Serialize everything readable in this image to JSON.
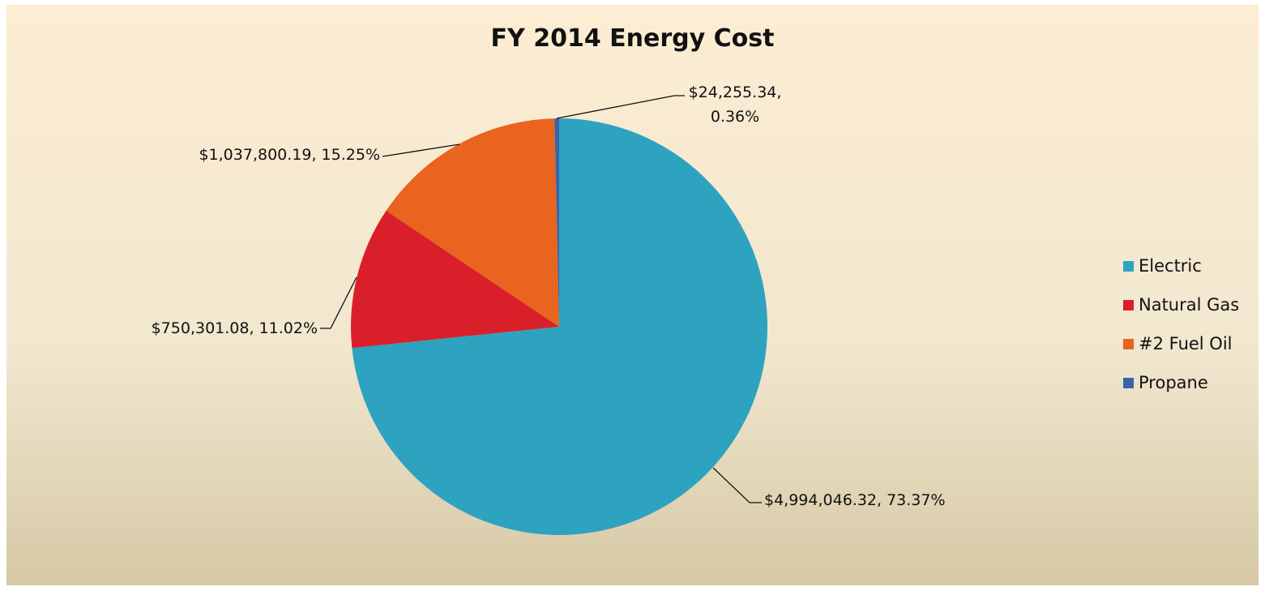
{
  "chart_data": {
    "type": "pie",
    "title": "FY 2014 Energy Cost",
    "categories": [
      "Electric",
      "Natural Gas",
      "#2 Fuel Oil",
      "Propane"
    ],
    "values": [
      4994046.32,
      750301.08,
      1037800.19,
      24255.34
    ],
    "value_labels": [
      "$4,994,046.32, 73.37%",
      "$750,301.08, 11.02%",
      "$1,037,800.19, 15.25%",
      "$24,255.34, 0.36%"
    ],
    "colors": [
      "#2ea3bf",
      "#d9202a",
      "#e9641e",
      "#3a64a8"
    ],
    "legend": "right"
  }
}
